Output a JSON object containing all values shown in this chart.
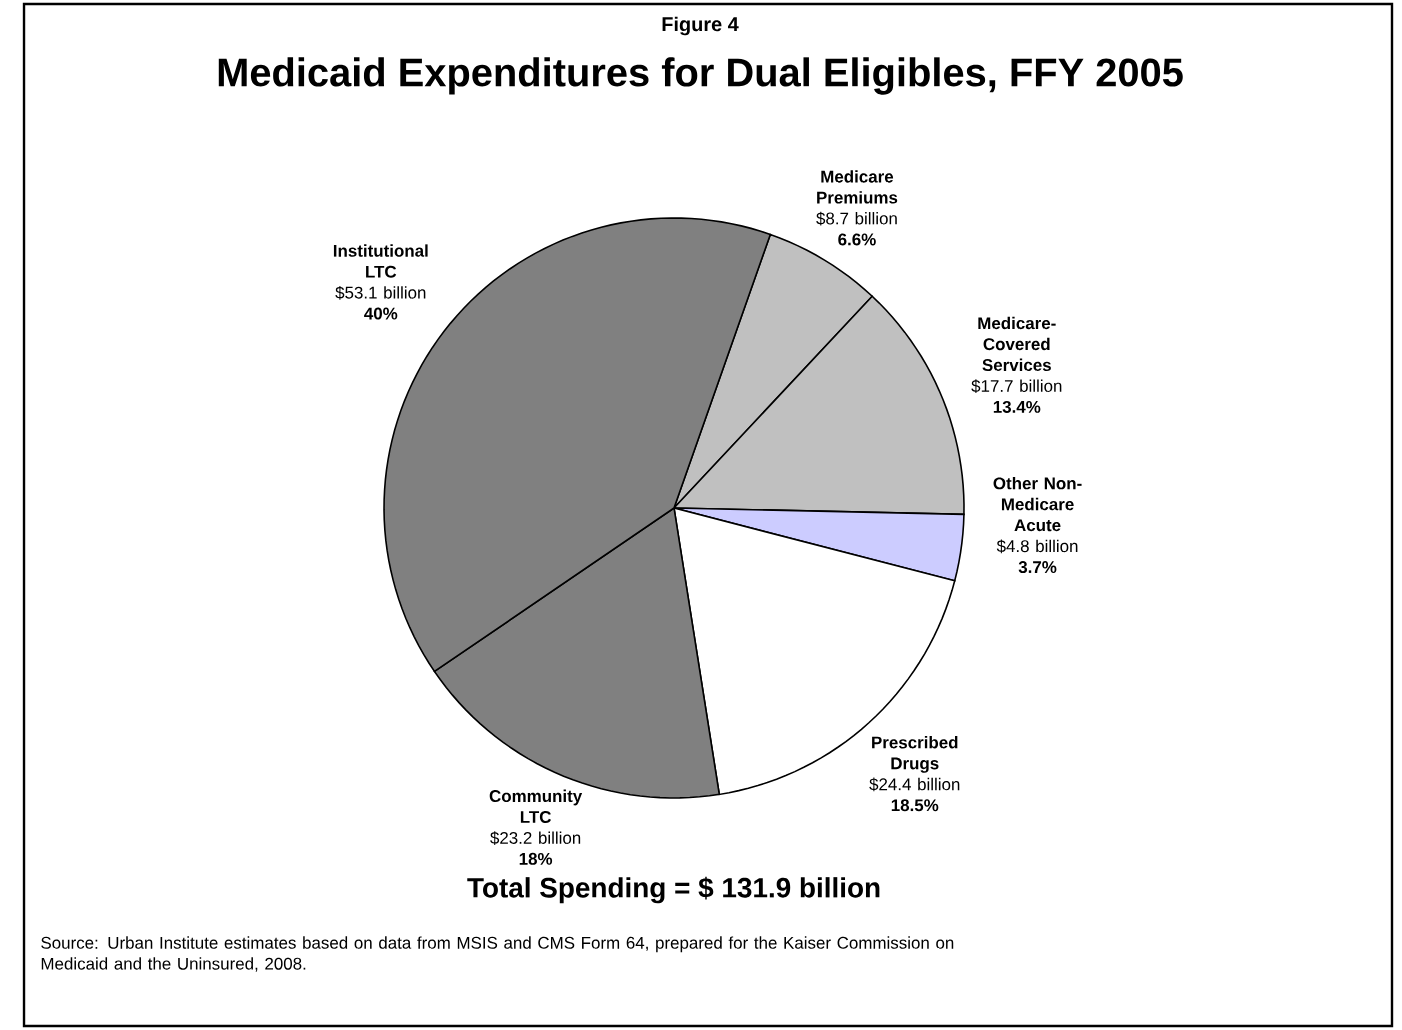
{
  "chart_data": {
    "type": "pie",
    "subtitle": "Figure 4",
    "title": "Medicaid Expenditures for Dual Eligibles, FFY 2005",
    "categories": [
      "Medicare Premiums",
      "Medicare-Covered Services",
      "Other Non-Medicare Acute",
      "Prescribed Drugs",
      "Community LTC",
      "Institutional LTC"
    ],
    "values": [
      6.6,
      13.4,
      3.7,
      18.5,
      18,
      40
    ],
    "colors": [
      "#c0c0c0",
      "#c0c0c0",
      "#ccccff",
      "#ffffff",
      "#808080",
      "#808080"
    ],
    "value_labels": [
      "6.6%",
      "13.4%",
      "3.7%",
      "18.5%",
      "18%",
      "40%"
    ],
    "annotations": [
      "$8.7 billion",
      "$17.7 billion",
      "$4.8 billion",
      "$24.4 billion",
      "$23.2 billion",
      "$53.1 billion",
      "Total Spending = $ 131.9 billion",
      "Source: Urban Institute estimates based on data from MSIS and CMS Form 64, prepared for the Kaiser Commission on Medicaid and the Uninsured, 2008."
    ]
  }
}
